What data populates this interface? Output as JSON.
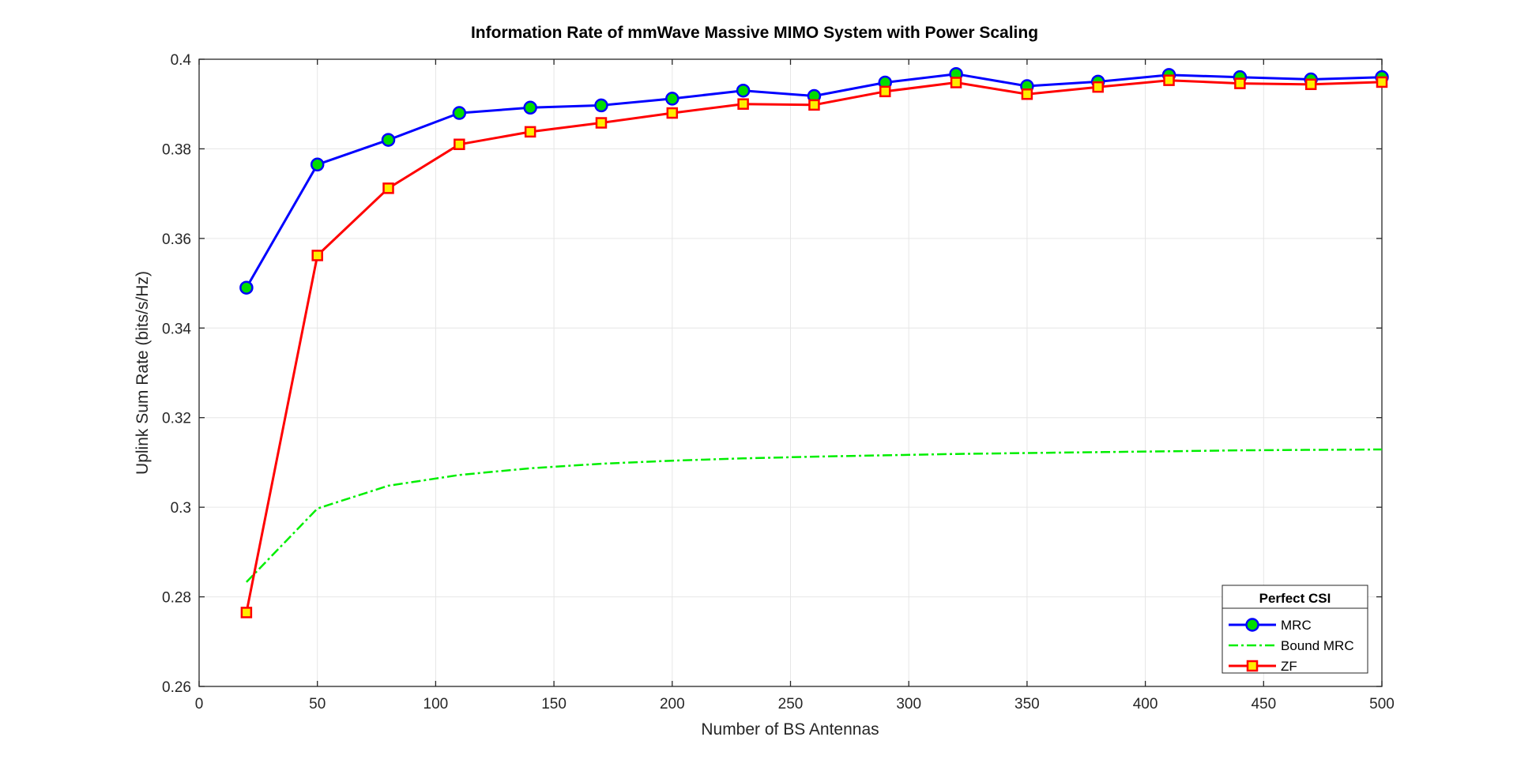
{
  "chart_data": {
    "type": "line",
    "title": "Information Rate of mmWave Massive MIMO System with Power Scaling",
    "xlabel": "Number of BS Antennas",
    "ylabel": "Uplink Sum Rate (bits/s/Hz)",
    "xlim": [
      0,
      500
    ],
    "ylim": [
      0.26,
      0.4
    ],
    "xticks": [
      0,
      50,
      100,
      150,
      200,
      250,
      300,
      350,
      400,
      450,
      500
    ],
    "yticks": [
      0.26,
      0.28,
      0.3,
      0.32,
      0.34,
      0.36,
      0.38,
      0.4
    ],
    "xtick_labels": [
      "0",
      "50",
      "100",
      "150",
      "200",
      "250",
      "300",
      "350",
      "400",
      "450",
      "500"
    ],
    "ytick_labels": [
      "0.26",
      "0.28",
      "0.3",
      "0.32",
      "0.34",
      "0.36",
      "0.38",
      "0.4"
    ],
    "grid": true,
    "legend": {
      "title": "Perfect CSI",
      "placement": "bottom-right",
      "entries": [
        "MRC",
        "Bound MRC",
        "ZF"
      ]
    },
    "x": [
      20,
      50,
      80,
      110,
      140,
      170,
      200,
      230,
      260,
      290,
      320,
      350,
      380,
      410,
      440,
      470,
      500
    ],
    "series": [
      {
        "name": "MRC",
        "color": "#0000ff",
        "marker_fill": "#00dd00",
        "marker": "circle",
        "line_style": "solid",
        "values": [
          0.349,
          0.3765,
          0.382,
          0.388,
          0.3892,
          0.3897,
          0.3912,
          0.393,
          0.3918,
          0.3948,
          0.3967,
          0.394,
          0.395,
          0.3965,
          0.396,
          0.3955,
          0.396
        ]
      },
      {
        "name": "Bound MRC",
        "color": "#00ee00",
        "marker": "none",
        "line_style": "dash-dot",
        "values": [
          0.2833,
          0.2997,
          0.3048,
          0.3072,
          0.3087,
          0.3097,
          0.3104,
          0.3109,
          0.3113,
          0.3116,
          0.3119,
          0.3121,
          0.3123,
          0.3125,
          0.3127,
          0.3128,
          0.3129
        ]
      },
      {
        "name": "ZF",
        "color": "#ff0000",
        "marker_fill": "#ffee00",
        "marker": "square",
        "line_style": "solid",
        "values": [
          0.2765,
          0.3562,
          0.3712,
          0.381,
          0.3838,
          0.3858,
          0.388,
          0.39,
          0.3898,
          0.3928,
          0.3948,
          0.3922,
          0.3938,
          0.3953,
          0.3946,
          0.3944,
          0.3949
        ]
      }
    ]
  }
}
